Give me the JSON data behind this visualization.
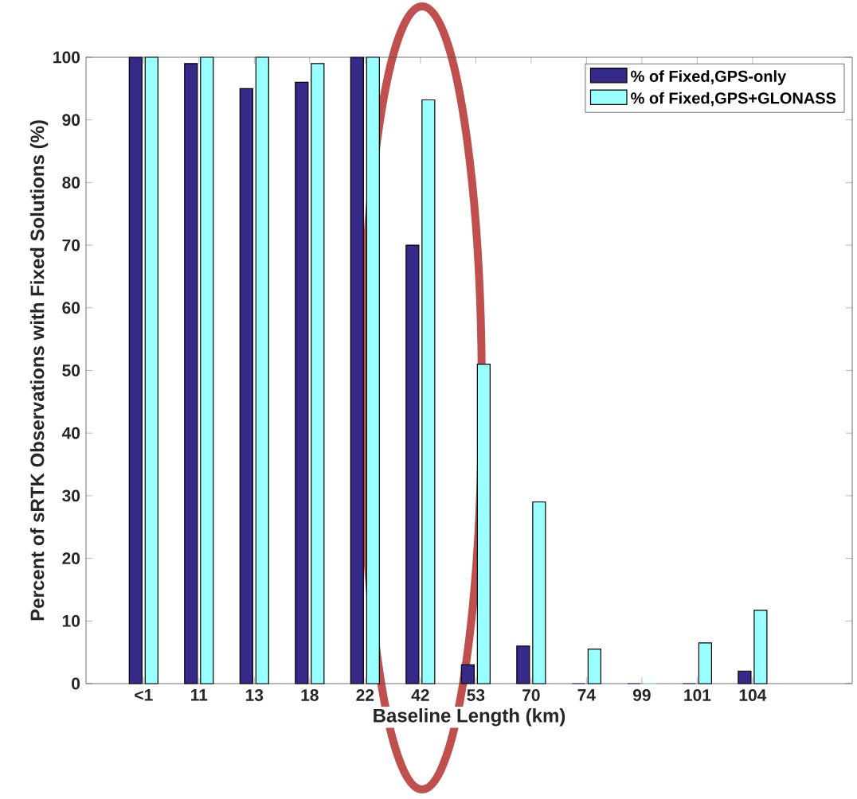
{
  "chart_data": {
    "type": "bar",
    "xlabel": "Baseline Length (km)",
    "ylabel": "Percent of sRTK Observations with Fixed Solutions (%)",
    "categories": [
      "<1",
      "11",
      "13",
      "18",
      "22",
      "42",
      "53",
      "70",
      "74",
      "99",
      "101",
      "104"
    ],
    "series": [
      {
        "name": "% of Fixed,GPS-only",
        "color": "#352a87",
        "values": [
          100,
          99,
          95,
          96,
          100,
          70,
          3,
          6,
          0,
          0,
          0,
          2
        ]
      },
      {
        "name": "% of Fixed,GPS+GLONASS",
        "color": "#99ffff",
        "values": [
          100,
          100,
          100,
          99,
          100,
          93.2,
          51,
          29,
          5.5,
          0,
          6.5,
          11.7
        ]
      }
    ],
    "ylim": [
      0,
      100
    ],
    "yticks": [
      0,
      10,
      20,
      30,
      40,
      50,
      60,
      70,
      80,
      90,
      100
    ],
    "legend": "top right"
  }
}
